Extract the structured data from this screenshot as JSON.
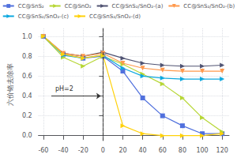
{
  "chart_data": {
    "type": "line",
    "line_style": "solid",
    "x": [
      -60,
      -40,
      -20,
      0,
      20,
      40,
      60,
      80,
      100,
      120
    ],
    "series": [
      {
        "name": "CC@SnS₂",
        "marker": "square",
        "values": [
          1.0,
          0.82,
          0.78,
          0.8,
          0.65,
          0.38,
          0.2,
          0.1,
          0.02,
          0.02
        ]
      },
      {
        "name": "CC@SnO₂",
        "marker": "triangle-right",
        "values": [
          1.0,
          0.79,
          0.7,
          0.8,
          0.72,
          0.62,
          0.52,
          0.38,
          0.18,
          0.04
        ]
      },
      {
        "name": "CC@SnS₂/SnO₂-(a)",
        "marker": "triangle-right",
        "values": [
          1.0,
          0.83,
          0.8,
          0.84,
          0.78,
          0.73,
          0.71,
          0.7,
          0.7,
          0.71
        ]
      },
      {
        "name": "CC@SnS₂/SnO₂-(b)",
        "marker": "triangle-down",
        "values": [
          1.0,
          0.83,
          0.8,
          0.83,
          0.73,
          0.68,
          0.66,
          0.65,
          0.65,
          0.65
        ]
      },
      {
        "name": "CC@SnS₂/SnO₂-(c)",
        "marker": "triangle-right",
        "values": [
          1.0,
          0.81,
          0.78,
          0.81,
          0.68,
          0.6,
          0.58,
          0.57,
          0.57,
          0.57
        ]
      },
      {
        "name": "CC@SnS₂/SnO₂-(d)",
        "marker": "triangle-right",
        "values": [
          1.0,
          0.82,
          0.78,
          0.81,
          0.1,
          0.02,
          0.0,
          0.0,
          0.0,
          0.02
        ]
      }
    ],
    "ylabel": "六价铬去除率",
    "xlim": [
      -65,
      127
    ],
    "ylim": [
      -0.05,
      1.08
    ],
    "xticks": [
      -60,
      -40,
      -20,
      0,
      20,
      40,
      60,
      80,
      100,
      120
    ],
    "yticks": [
      {
        "value": 0.0,
        "label": "0.0"
      },
      {
        "value": 0.2,
        "label": "0.2"
      },
      {
        "value": 0.4,
        "label": "0.4"
      },
      {
        "value": 0.6,
        "label": "0.6"
      },
      {
        "value": 0.8,
        "label": "0.8"
      },
      {
        "value": 1.0,
        "label": "1.0"
      }
    ],
    "grid": true,
    "legend": "top",
    "vlines": [
      {
        "x": 0,
        "line_style": "dashed"
      }
    ],
    "annotations": [
      {
        "text": "pH=2",
        "x": -52,
        "y": 0.4,
        "arrow_x": -2
      }
    ]
  }
}
